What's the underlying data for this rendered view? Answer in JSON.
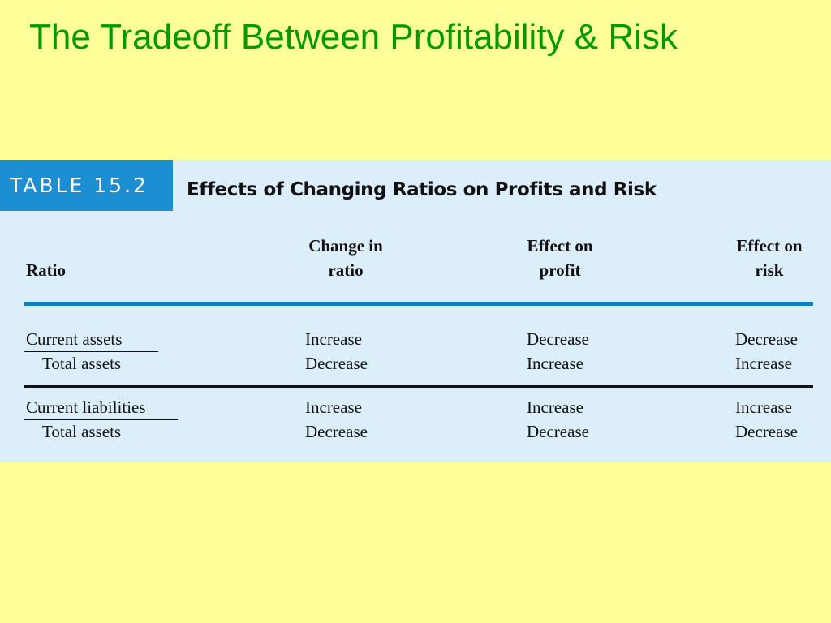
{
  "slide": {
    "title": "The Tradeoff Between Profitability & Risk"
  },
  "table": {
    "tag": "TABLE 15.2",
    "caption": "Effects of Changing Ratios on Profits and Risk",
    "headers": {
      "ratio": "Ratio",
      "change_line1": "Change in",
      "change_line2": "ratio",
      "profit_line1": "Effect on",
      "profit_line2": "profit",
      "risk_line1": "Effect on",
      "risk_line2": "risk"
    },
    "rows": [
      {
        "numerator": "Current assets",
        "denominator": "Total assets",
        "change": [
          "Increase",
          "Decrease"
        ],
        "profit": [
          "Decrease",
          "Increase"
        ],
        "risk": [
          "Decrease",
          "Increase"
        ]
      },
      {
        "numerator": "Current liabilities",
        "denominator": "Total assets",
        "change": [
          "Increase",
          "Decrease"
        ],
        "profit": [
          "Increase",
          "Decrease"
        ],
        "risk": [
          "Increase",
          "Decrease"
        ]
      }
    ]
  },
  "colors": {
    "background": "#ffff99",
    "title": "#009900",
    "panel": "#dbeefa",
    "tag": "#1b8fd2",
    "rule": "#0d7fbf"
  }
}
